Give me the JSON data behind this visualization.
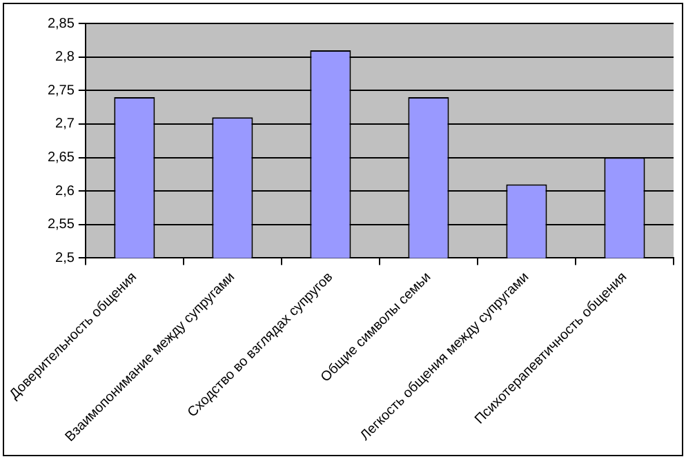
{
  "chart_data": {
    "type": "bar",
    "categories": [
      "Доверительность общения",
      "Взаимопонимание между супругами",
      "Сходство во взглядах супругов",
      "Общие символы семьи",
      "Легкость общения между супругами",
      "Психотерапевтичность общения"
    ],
    "values": [
      2.74,
      2.71,
      2.81,
      2.74,
      2.61,
      2.65
    ],
    "color": "#9999ff",
    "ylim": [
      2.5,
      2.85
    ],
    "yticks": [
      {
        "value": 2.5,
        "label": "2,5"
      },
      {
        "value": 2.55,
        "label": "2,55"
      },
      {
        "value": 2.6,
        "label": "2,6"
      },
      {
        "value": 2.65,
        "label": "2,65"
      },
      {
        "value": 2.7,
        "label": "2,7"
      },
      {
        "value": 2.75,
        "label": "2,75"
      },
      {
        "value": 2.8,
        "label": "2,8"
      },
      {
        "value": 2.85,
        "label": "2,85"
      }
    ],
    "grid": "y",
    "legend": false
  }
}
